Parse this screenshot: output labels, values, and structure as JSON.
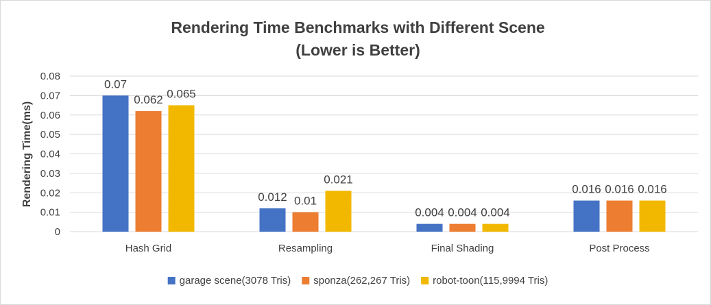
{
  "chart_data": {
    "type": "bar",
    "title": "Rendering Time Benchmarks with Different Scene",
    "subtitle": "(Lower is Better)",
    "xlabel": "",
    "ylabel": "Rendering Time(ms)",
    "ylim": [
      0,
      0.08
    ],
    "yticks": [
      "0",
      "0.01",
      "0.02",
      "0.03",
      "0.04",
      "0.05",
      "0.06",
      "0.07",
      "0.08"
    ],
    "grid": true,
    "legend_position": "bottom",
    "categories": [
      "Hash Grid",
      "Resampling",
      "Final Shading",
      "Post Process"
    ],
    "series": [
      {
        "name": "garage scene(3078 Tris)",
        "color": "#4472c4",
        "values": [
          0.07,
          0.012,
          0.004,
          0.016
        ],
        "labels": [
          "0.07",
          "0.012",
          "0.004",
          "0.016"
        ]
      },
      {
        "name": "sponza(262,267 Tris)",
        "color": "#ed7d31",
        "values": [
          0.062,
          0.01,
          0.004,
          0.016
        ],
        "labels": [
          "0.062",
          "0.01",
          "0.004",
          "0.016"
        ]
      },
      {
        "name": "robot-toon(115,9994 Tris)",
        "color": "#f2b800",
        "values": [
          0.065,
          0.021,
          0.004,
          0.016
        ],
        "labels": [
          "0.065",
          "0.021",
          "0.004",
          "0.016"
        ]
      }
    ]
  }
}
